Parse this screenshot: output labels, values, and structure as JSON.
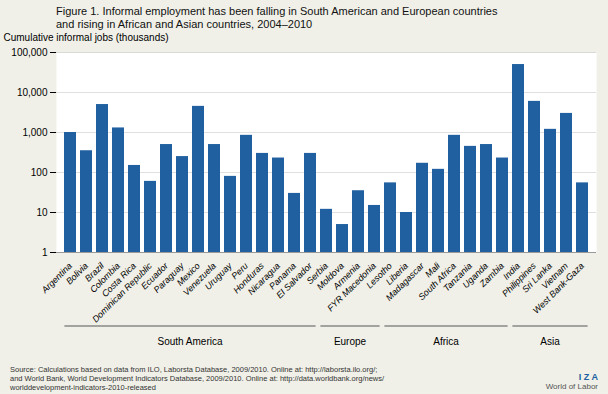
{
  "chart_data": {
    "type": "bar",
    "title": "Figure 1. Informal employment has been falling in South American and European countries\nand rising in African and Asian countries, 2004–2010",
    "ylabel": "Cumulative informal jobs (thousands)",
    "categories": [
      "Argentina",
      "Bolivia",
      "Brazil",
      "Colombia",
      "Costa Rica",
      "Dominican Republic",
      "Ecuador",
      "Paraguay",
      "Mexico",
      "Venezuela",
      "Uruguay",
      "Peru",
      "Honduras",
      "Nicaragua",
      "Panama",
      "El Salvador",
      "Serbia",
      "Moldova",
      "Armenia",
      "FYR Macedonia",
      "Lesotho",
      "Liberia",
      "Madagascar",
      "Mali",
      "South Africa",
      "Tanzania",
      "Uganda",
      "Zambia",
      "India",
      "Philippines",
      "Sri Lanka",
      "Vietnam",
      "West Bank-Gaza"
    ],
    "values": [
      1000,
      350,
      5000,
      1300,
      150,
      60,
      500,
      250,
      4500,
      500,
      80,
      850,
      300,
      230,
      30,
      300,
      12,
      5,
      35,
      15,
      55,
      10,
      170,
      120,
      850,
      450,
      500,
      230,
      50000,
      6000,
      1200,
      3000,
      55
    ],
    "regions": [
      "South America",
      "South America",
      "South America",
      "South America",
      "South America",
      "South America",
      "South America",
      "South America",
      "South America",
      "South America",
      "South America",
      "South America",
      "South America",
      "South America",
      "South America",
      "South America",
      "Europe",
      "Europe",
      "Europe",
      "Europe",
      "Africa",
      "Africa",
      "Africa",
      "Africa",
      "Africa",
      "Africa",
      "Africa",
      "Africa",
      "Asia",
      "Asia",
      "Asia",
      "Asia",
      "Asia"
    ],
    "region_order": [
      "South America",
      "Europe",
      "Africa",
      "Asia"
    ],
    "color": "#2060A0",
    "log": "y",
    "ylim": [
      1,
      100000
    ],
    "yticks": [
      1,
      10,
      100,
      {
        "value": 1000,
        "label": "1,000"
      },
      {
        "value": 10000,
        "label": "10,000"
      },
      {
        "value": 100000,
        "label": "100,000"
      }
    ],
    "grid": true,
    "source": "Source: Calculations based on data from ILO, Laborsta Database, 2009/2010. Online at: http://laborsta.ilo.org/;\nand World Bank, World Development Indicators Database, 2009/2010. Online at: http://data.worldbank.org/news/\nworlddevelopment-indicators-2010-released",
    "annotations": [
      "I Z A",
      "World of Labor"
    ]
  }
}
